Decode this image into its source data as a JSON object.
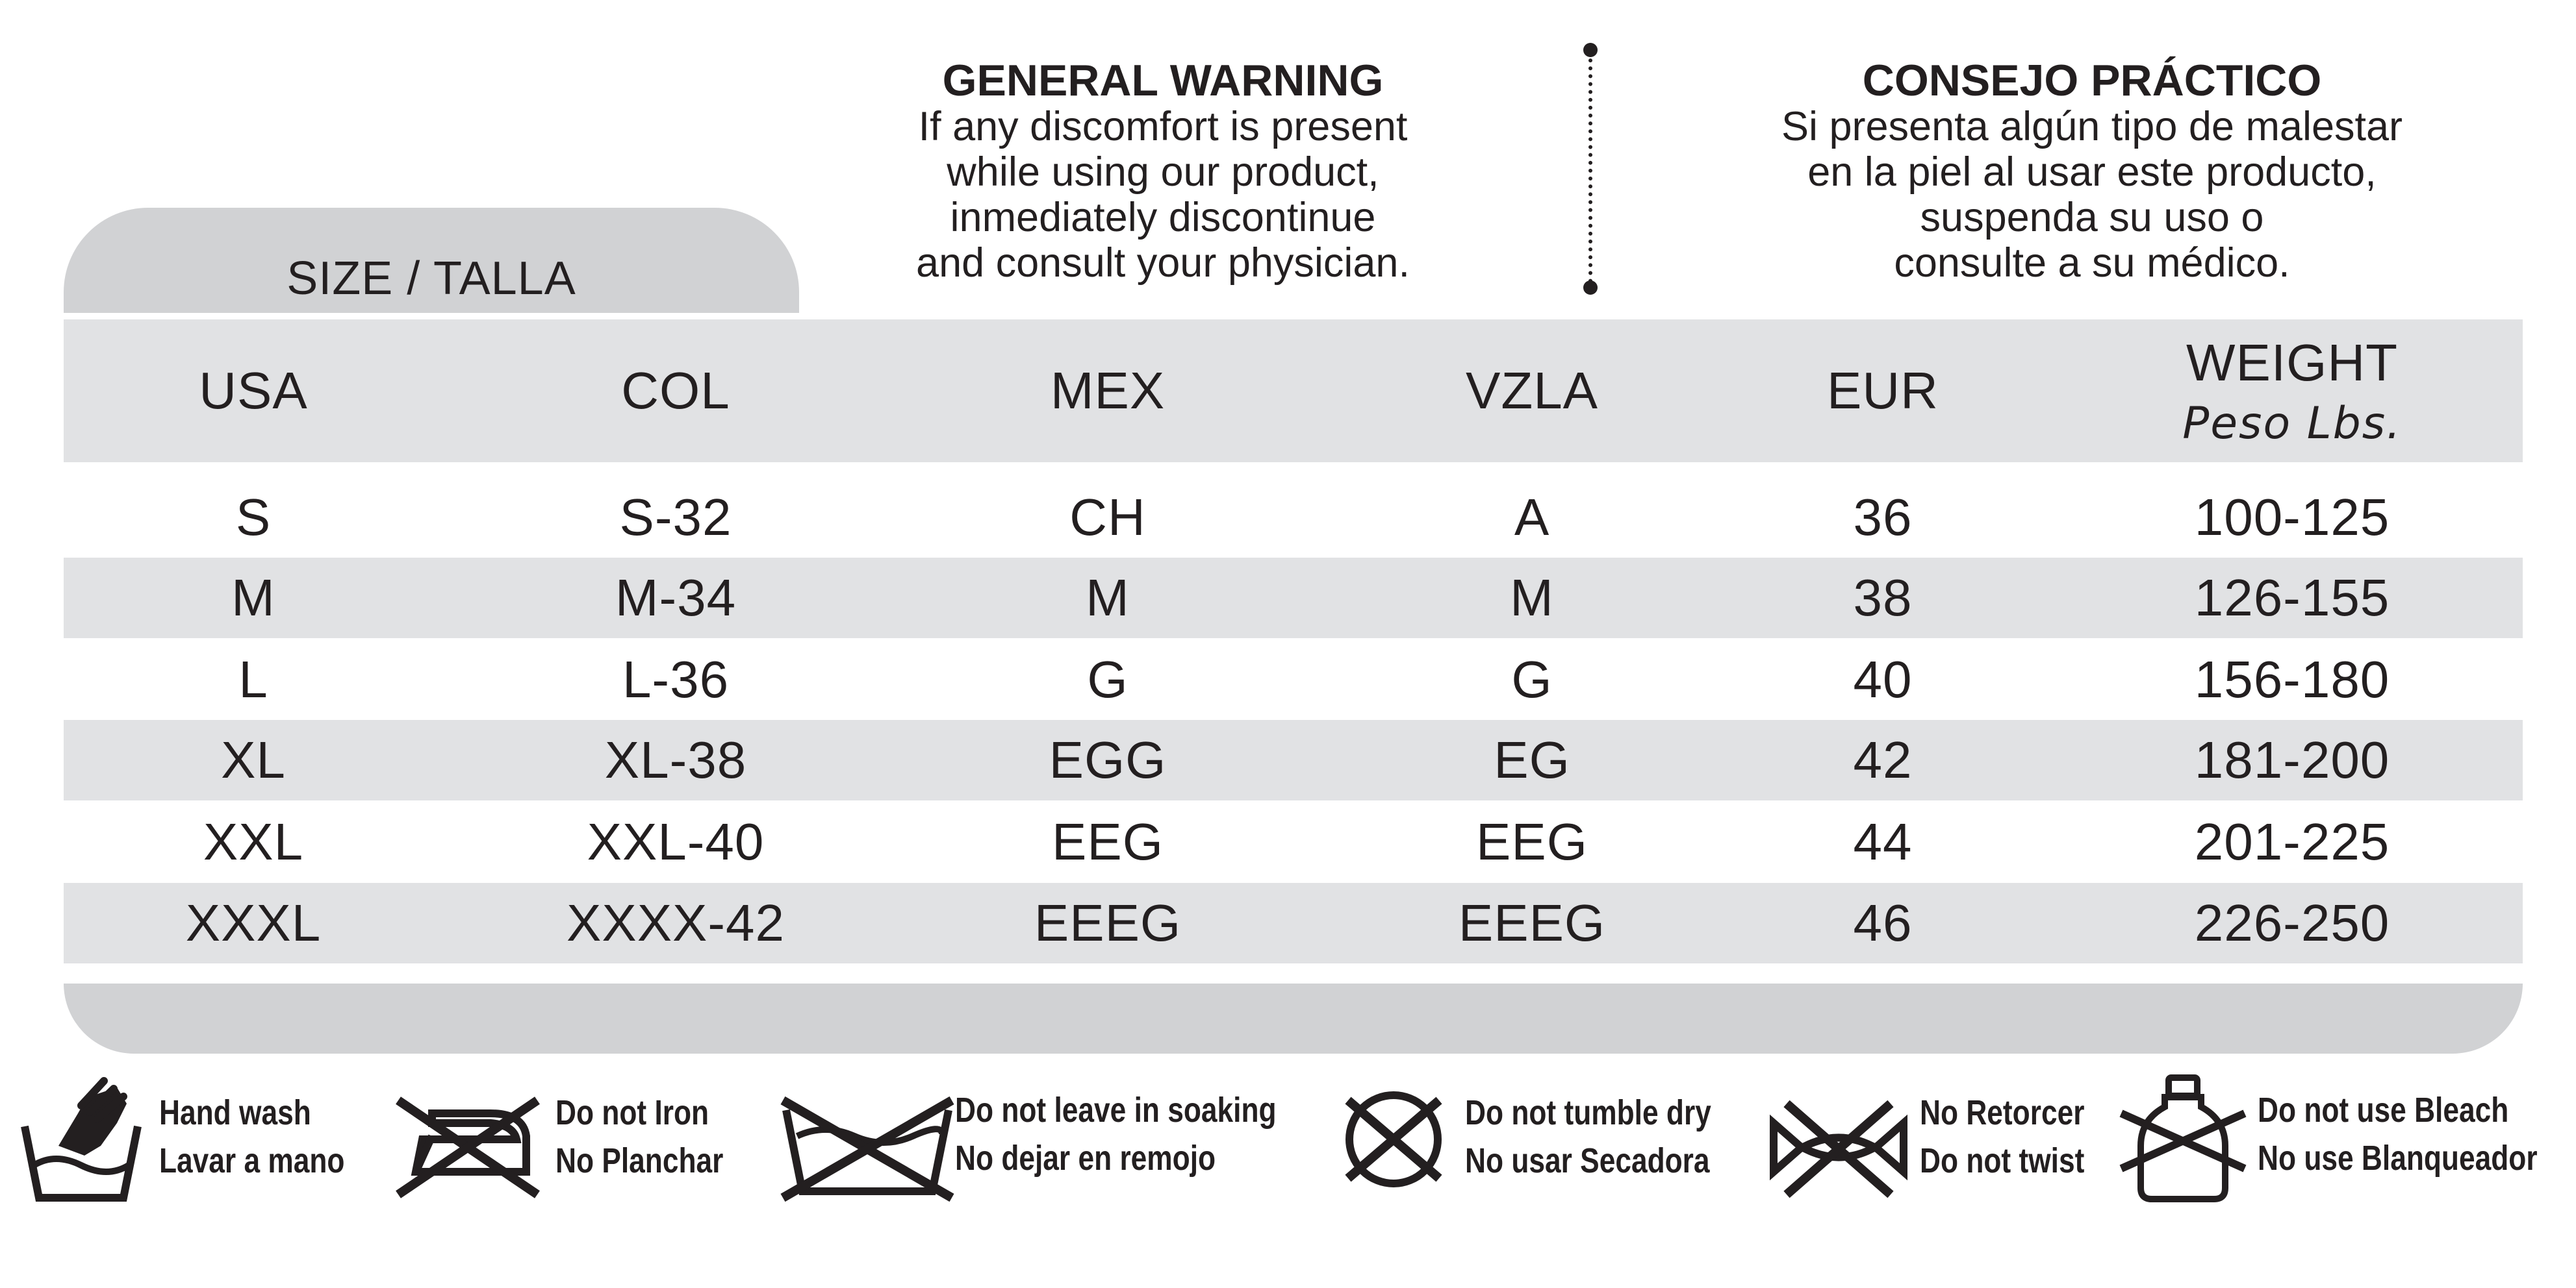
{
  "warning_en": {
    "title": "GENERAL WARNING",
    "lines": [
      "If any discomfort is present",
      "while using our product,",
      "inmediately discontinue",
      "and consult your physician."
    ]
  },
  "warning_es": {
    "title": "CONSEJO PRÁCTICO",
    "lines": [
      "Si presenta algún tipo de malestar",
      "en la piel al usar este producto,",
      "suspenda su uso o",
      "consulte a su médico."
    ]
  },
  "size_tab": "SIZE / TALLA",
  "table": {
    "headers": [
      "USA",
      "COL",
      "MEX",
      "VZLA",
      "EUR",
      "WEIGHT"
    ],
    "weight_sub": "Peso Lbs.",
    "rows": [
      [
        "S",
        "S-32",
        "CH",
        "A",
        "36",
        "100-125"
      ],
      [
        "M",
        "M-34",
        "M",
        "M",
        "38",
        "126-155"
      ],
      [
        "L",
        "L-36",
        "G",
        "G",
        "40",
        "156-180"
      ],
      [
        "XL",
        "XL-38",
        "EGG",
        "EG",
        "42",
        "181-200"
      ],
      [
        "XXL",
        "XXL-40",
        "EEG",
        "EEG",
        "44",
        "201-225"
      ],
      [
        "XXXL",
        "XXXX-42",
        "EEEG",
        "EEEG",
        "46",
        "226-250"
      ]
    ]
  },
  "care": [
    {
      "icon": "hand-wash-icon",
      "en": "Hand wash",
      "es": "Lavar a mano"
    },
    {
      "icon": "no-iron-icon",
      "en": "Do not Iron",
      "es": "No Planchar"
    },
    {
      "icon": "no-soak-icon",
      "en": "Do not leave in soaking",
      "es": "No dejar en remojo"
    },
    {
      "icon": "no-tumble-dry-icon",
      "en": "Do not tumble dry",
      "es": "No usar Secadora"
    },
    {
      "icon": "no-wring-icon",
      "en": "No Retorcer",
      "es": "Do not twist"
    },
    {
      "icon": "no-bleach-icon",
      "en": "Do not use Bleach",
      "es": "No use Blanqueador"
    }
  ],
  "colors": {
    "text": "#231f20",
    "tab_gray": "#d1d2d4",
    "row_gray": "#e1e2e4"
  }
}
